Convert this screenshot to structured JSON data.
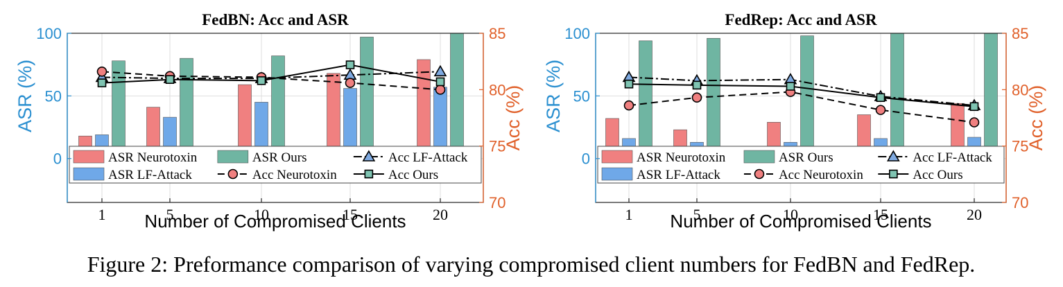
{
  "caption": "Figure 2: Preformance comparison of varying compromised client numbers for FedBN and FedRep.",
  "colors": {
    "asr_neurotoxin": "#f08080",
    "asr_lf_attack": "#6fa8e8",
    "asr_ours": "#6fb5a2",
    "left_axis": "#2a8fd0",
    "right_axis": "#e0602a",
    "marker_lf": "#7ea9e0",
    "marker_neuro": "#f08080",
    "marker_ours": "#7fc4b2"
  },
  "chart_data": [
    {
      "type": "bar",
      "title": "FedBN: Acc and ASR",
      "xlabel": "Number of Compromised Clients",
      "ylabel_left": "ASR (%)",
      "ylabel_right": "Acc (%)",
      "categories": [
        "1",
        "5",
        "10",
        "15",
        "20"
      ],
      "ylim_left": [
        -35,
        100
      ],
      "yticks_left": [
        "0",
        "50",
        "100"
      ],
      "ylim_right": [
        70,
        85
      ],
      "yticks_right": [
        "70",
        "75",
        "80",
        "85"
      ],
      "grid": true,
      "legend_position": "bottom",
      "legend": [
        "ASR Neurotoxin",
        "ASR Ours",
        "Acc LF-Attack",
        "ASR LF-Attack",
        "Acc Neurotoxin",
        "Acc Ours"
      ],
      "bars": [
        {
          "name": "ASR Neurotoxin",
          "values": [
            18,
            41,
            59,
            68,
            79
          ]
        },
        {
          "name": "ASR LF-Attack",
          "values": [
            19,
            33,
            45,
            56,
            57
          ]
        },
        {
          "name": "ASR Ours",
          "values": [
            78,
            80,
            82,
            97,
            100
          ]
        }
      ],
      "lines": [
        {
          "name": "Acc LF-Attack",
          "marker": "triangle",
          "dash": "dashdot",
          "values": [
            81.1,
            81.0,
            81.0,
            81.3,
            81.6
          ]
        },
        {
          "name": "Acc Neurotoxin",
          "marker": "circle",
          "dash": "dashed",
          "values": [
            81.6,
            81.2,
            81.1,
            80.6,
            80.0
          ]
        },
        {
          "name": "Acc Ours",
          "marker": "square",
          "dash": "solid",
          "values": [
            80.6,
            80.9,
            80.8,
            82.2,
            80.7
          ]
        }
      ]
    },
    {
      "type": "bar",
      "title": "FedRep: Acc and ASR",
      "xlabel": "Number of Compromised Clients",
      "ylabel_left": "ASR (%)",
      "ylabel_right": "Acc (%)",
      "categories": [
        "1",
        "5",
        "10",
        "15",
        "20"
      ],
      "ylim_left": [
        -35,
        100
      ],
      "yticks_left": [
        "0",
        "50",
        "100"
      ],
      "ylim_right": [
        70,
        85
      ],
      "yticks_right": [
        "70",
        "75",
        "80",
        "85"
      ],
      "grid": true,
      "legend_position": "bottom",
      "legend": [
        "ASR Neurotoxin",
        "ASR Ours",
        "Acc LF-Attack",
        "ASR LF-Attack",
        "Acc Neurotoxin",
        "Acc Ours"
      ],
      "bars": [
        {
          "name": "ASR Neurotoxin",
          "values": [
            32,
            23,
            29,
            35,
            44
          ]
        },
        {
          "name": "ASR LF-Attack",
          "values": [
            16,
            13,
            13,
            16,
            17
          ]
        },
        {
          "name": "ASR Ours",
          "values": [
            94,
            96,
            98,
            100,
            100
          ]
        }
      ],
      "lines": [
        {
          "name": "Acc LF-Attack",
          "marker": "triangle",
          "dash": "dashdot",
          "values": [
            81.1,
            80.8,
            80.9,
            79.4,
            78.6
          ]
        },
        {
          "name": "Acc Neurotoxin",
          "marker": "circle",
          "dash": "dashed",
          "values": [
            78.6,
            79.3,
            79.8,
            78.2,
            77.1
          ]
        },
        {
          "name": "Acc Ours",
          "marker": "square",
          "dash": "solid",
          "values": [
            80.5,
            80.4,
            80.3,
            79.3,
            78.5
          ]
        }
      ]
    }
  ]
}
